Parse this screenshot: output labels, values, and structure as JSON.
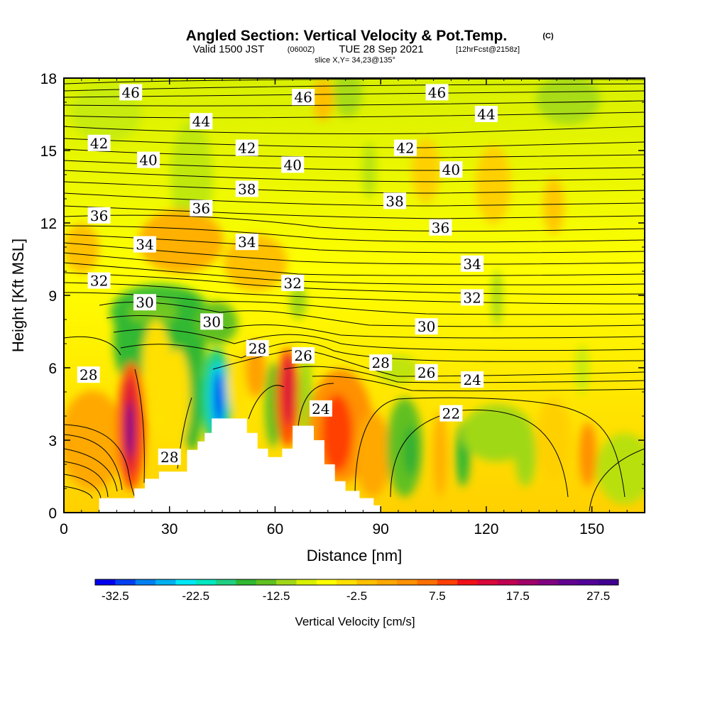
{
  "chart_data": {
    "type": "heatmap",
    "title": {
      "main": "Angled Section: Vertical Velocity & Pot.Temp.",
      "main_suffix": "(C)",
      "valid_pre": "Valid 1500 JST",
      "valid_utc": "(0600Z)",
      "valid_post": "TUE 28 Sep 2021",
      "fcst": "[12hrFcst@2158z]",
      "slice": "slice X,Y= 34,23@135°"
    },
    "xlabel": "Distance [nm]",
    "ylabel": "Height [Kft MSL]",
    "xlim": [
      0,
      165
    ],
    "ylim": [
      0,
      18
    ],
    "xticks": [
      0,
      30,
      60,
      90,
      120,
      150
    ],
    "yticks": [
      0,
      3,
      6,
      9,
      12,
      15,
      18
    ],
    "colorbar": {
      "label": "Vertical Velocity [cm/s]",
      "min": -35,
      "max": 30,
      "step": 2.5,
      "tick_values": [
        -32.5,
        -22.5,
        -12.5,
        -2.5,
        7.5,
        17.5,
        27.5
      ],
      "tick_labels": [
        "-32.5",
        "-22.5",
        "-12.5",
        "-2.5",
        "7.5",
        "17.5",
        "27.5"
      ],
      "colors": [
        "#0000ee",
        "#0040f0",
        "#0080f0",
        "#00b0f0",
        "#00e8f8",
        "#00e8c0",
        "#20d080",
        "#30b830",
        "#60c020",
        "#a0d818",
        "#d8f000",
        "#ffff00",
        "#ffe000",
        "#ffc000",
        "#ffa800",
        "#ff9000",
        "#ff7000",
        "#ff4000",
        "#f01018",
        "#d80838",
        "#c00050",
        "#a00068",
        "#800080",
        "#600090",
        "#500098",
        "#400090"
      ]
    },
    "terrain_outline": [
      [
        0,
        0
      ],
      [
        10,
        0
      ],
      [
        10,
        0.6
      ],
      [
        20,
        0.6
      ],
      [
        20,
        1.0
      ],
      [
        23,
        1.0
      ],
      [
        23,
        1.4
      ],
      [
        27,
        1.4
      ],
      [
        27,
        1.7
      ],
      [
        35,
        1.7
      ],
      [
        35,
        2.6
      ],
      [
        38,
        2.6
      ],
      [
        38,
        2.95
      ],
      [
        40,
        2.95
      ],
      [
        40,
        3.3
      ],
      [
        42,
        3.3
      ],
      [
        42,
        3.9
      ],
      [
        52,
        3.9
      ],
      [
        52,
        3.3
      ],
      [
        55,
        3.3
      ],
      [
        55,
        2.65
      ],
      [
        58,
        2.65
      ],
      [
        58,
        2.3
      ],
      [
        62,
        2.3
      ],
      [
        62,
        2.65
      ],
      [
        65,
        2.65
      ],
      [
        65,
        3.6
      ],
      [
        71,
        3.6
      ],
      [
        71,
        3.0
      ],
      [
        74,
        3.0
      ],
      [
        74,
        2.0
      ],
      [
        77,
        2.0
      ],
      [
        77,
        1.3
      ],
      [
        80,
        1.3
      ],
      [
        80,
        0.9
      ],
      [
        84,
        0.9
      ],
      [
        84,
        0.6
      ],
      [
        88,
        0.6
      ],
      [
        88,
        0.3
      ],
      [
        90,
        0.3
      ],
      [
        90,
        0
      ]
    ],
    "pot_temp_labels": [
      {
        "text": "46",
        "x": 19,
        "y": 17.4
      },
      {
        "text": "46",
        "x": 68,
        "y": 17.2
      },
      {
        "text": "46",
        "x": 106,
        "y": 17.4
      },
      {
        "text": "44",
        "x": 39,
        "y": 16.2
      },
      {
        "text": "44",
        "x": 120,
        "y": 16.5
      },
      {
        "text": "42",
        "x": 10,
        "y": 15.3
      },
      {
        "text": "42",
        "x": 52,
        "y": 15.1
      },
      {
        "text": "42",
        "x": 97,
        "y": 15.1
      },
      {
        "text": "40",
        "x": 24,
        "y": 14.6
      },
      {
        "text": "40",
        "x": 65,
        "y": 14.4
      },
      {
        "text": "40",
        "x": 110,
        "y": 14.2
      },
      {
        "text": "38",
        "x": 52,
        "y": 13.4
      },
      {
        "text": "38",
        "x": 94,
        "y": 12.9
      },
      {
        "text": "36",
        "x": 10,
        "y": 12.3
      },
      {
        "text": "36",
        "x": 39,
        "y": 12.6
      },
      {
        "text": "36",
        "x": 107,
        "y": 11.8
      },
      {
        "text": "34",
        "x": 23,
        "y": 11.1
      },
      {
        "text": "34",
        "x": 52,
        "y": 11.2
      },
      {
        "text": "34",
        "x": 116,
        "y": 10.3
      },
      {
        "text": "32",
        "x": 10,
        "y": 9.6
      },
      {
        "text": "32",
        "x": 65,
        "y": 9.5
      },
      {
        "text": "32",
        "x": 116,
        "y": 8.9
      },
      {
        "text": "30",
        "x": 23,
        "y": 8.7
      },
      {
        "text": "30",
        "x": 42,
        "y": 7.9
      },
      {
        "text": "30",
        "x": 103,
        "y": 7.7
      },
      {
        "text": "28",
        "x": 55,
        "y": 6.8
      },
      {
        "text": "28",
        "x": 90,
        "y": 6.2
      },
      {
        "text": "28",
        "x": 7,
        "y": 5.7
      },
      {
        "text": "28",
        "x": 30,
        "y": 2.3
      },
      {
        "text": "26",
        "x": 68,
        "y": 6.5
      },
      {
        "text": "26",
        "x": 103,
        "y": 5.8
      },
      {
        "text": "24",
        "x": 116,
        "y": 5.5
      },
      {
        "text": "24",
        "x": 73,
        "y": 4.3
      },
      {
        "text": "22",
        "x": 110,
        "y": 4.1
      }
    ]
  }
}
